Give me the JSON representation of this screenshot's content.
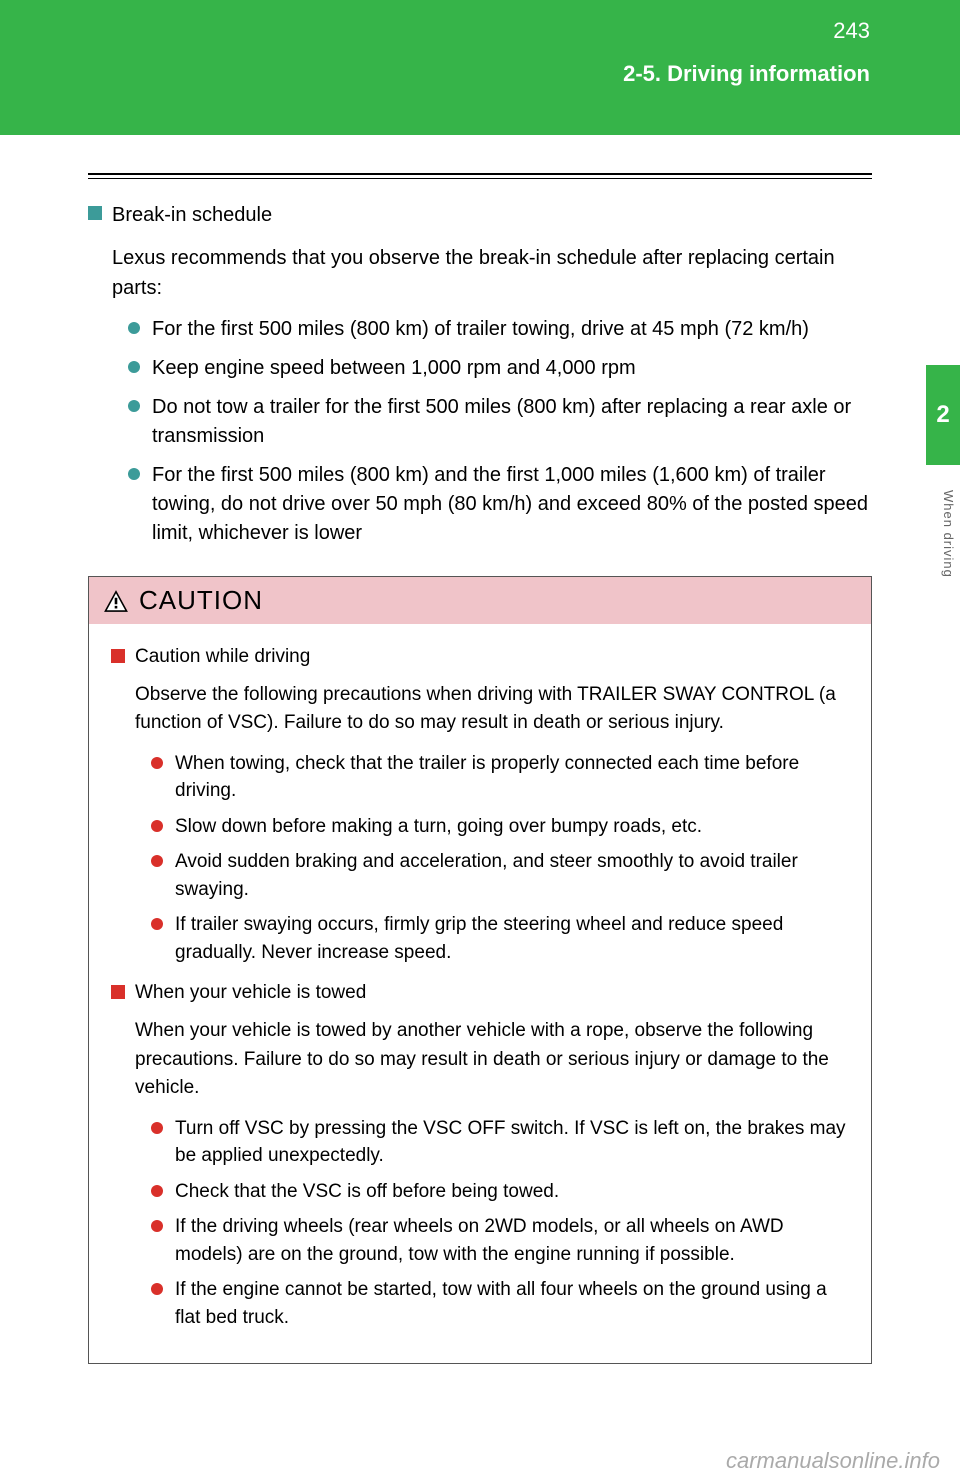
{
  "header": {
    "page_number": "243",
    "section_label": "2-5. Driving information",
    "band_color": "#36b449"
  },
  "side_tab": {
    "number": "2",
    "vertical_text": "When driving"
  },
  "section1": {
    "heading": "Break-in schedule",
    "intro": "Lexus recommends that you observe the break-in schedule after replacing certain parts:",
    "bullets": [
      "For the first 500 miles (800 km) of trailer towing, drive at 45 mph (72 km/h)",
      "Keep engine speed between 1,000 rpm and 4,000 rpm",
      "Do not tow a trailer for the first 500 miles (800 km) after replacing a rear axle or transmission",
      "For the first 500 miles (800 km) and the first 1,000 miles (1,600 km) of trailer towing, do not drive over 50 mph (80 km/h) and exceed 80% of the posted speed limit, whichever is lower"
    ]
  },
  "caution": {
    "title": "CAUTION",
    "block1": {
      "heading": "Caution while driving",
      "para": "Observe the following precautions when driving with TRAILER SWAY CONTROL (a function of VSC). Failure to do so may result in death or serious injury.",
      "bullets": [
        "When towing, check that the trailer is properly connected each time before driving.",
        "Slow down before making a turn, going over bumpy roads, etc.",
        "Avoid sudden braking and acceleration, and steer smoothly to avoid trailer swaying.",
        "If trailer swaying occurs, firmly grip the steering wheel and reduce speed gradually. Never increase speed."
      ]
    },
    "block2": {
      "heading": "When your vehicle is towed",
      "para": "When your vehicle is towed by another vehicle with a rope, observe the following precautions. Failure to do so may result in death or serious injury or damage to the vehicle.",
      "bullets": [
        "Turn off VSC by pressing the VSC OFF switch. If VSC is left on, the brakes may be applied unexpectedly.",
        "Check that the VSC is off before being towed.",
        "If the driving wheels (rear wheels on 2WD models, or all wheels on AWD models) are on the ground, tow with the engine running if possible.",
        "If the engine cannot be started, tow with all four wheels on the ground using a flat bed truck."
      ]
    }
  },
  "watermark": "carmanualsonline.info",
  "colors": {
    "teal": "#3c9b99",
    "red": "#d9302a",
    "caution_bg": "#f0c4c9"
  }
}
